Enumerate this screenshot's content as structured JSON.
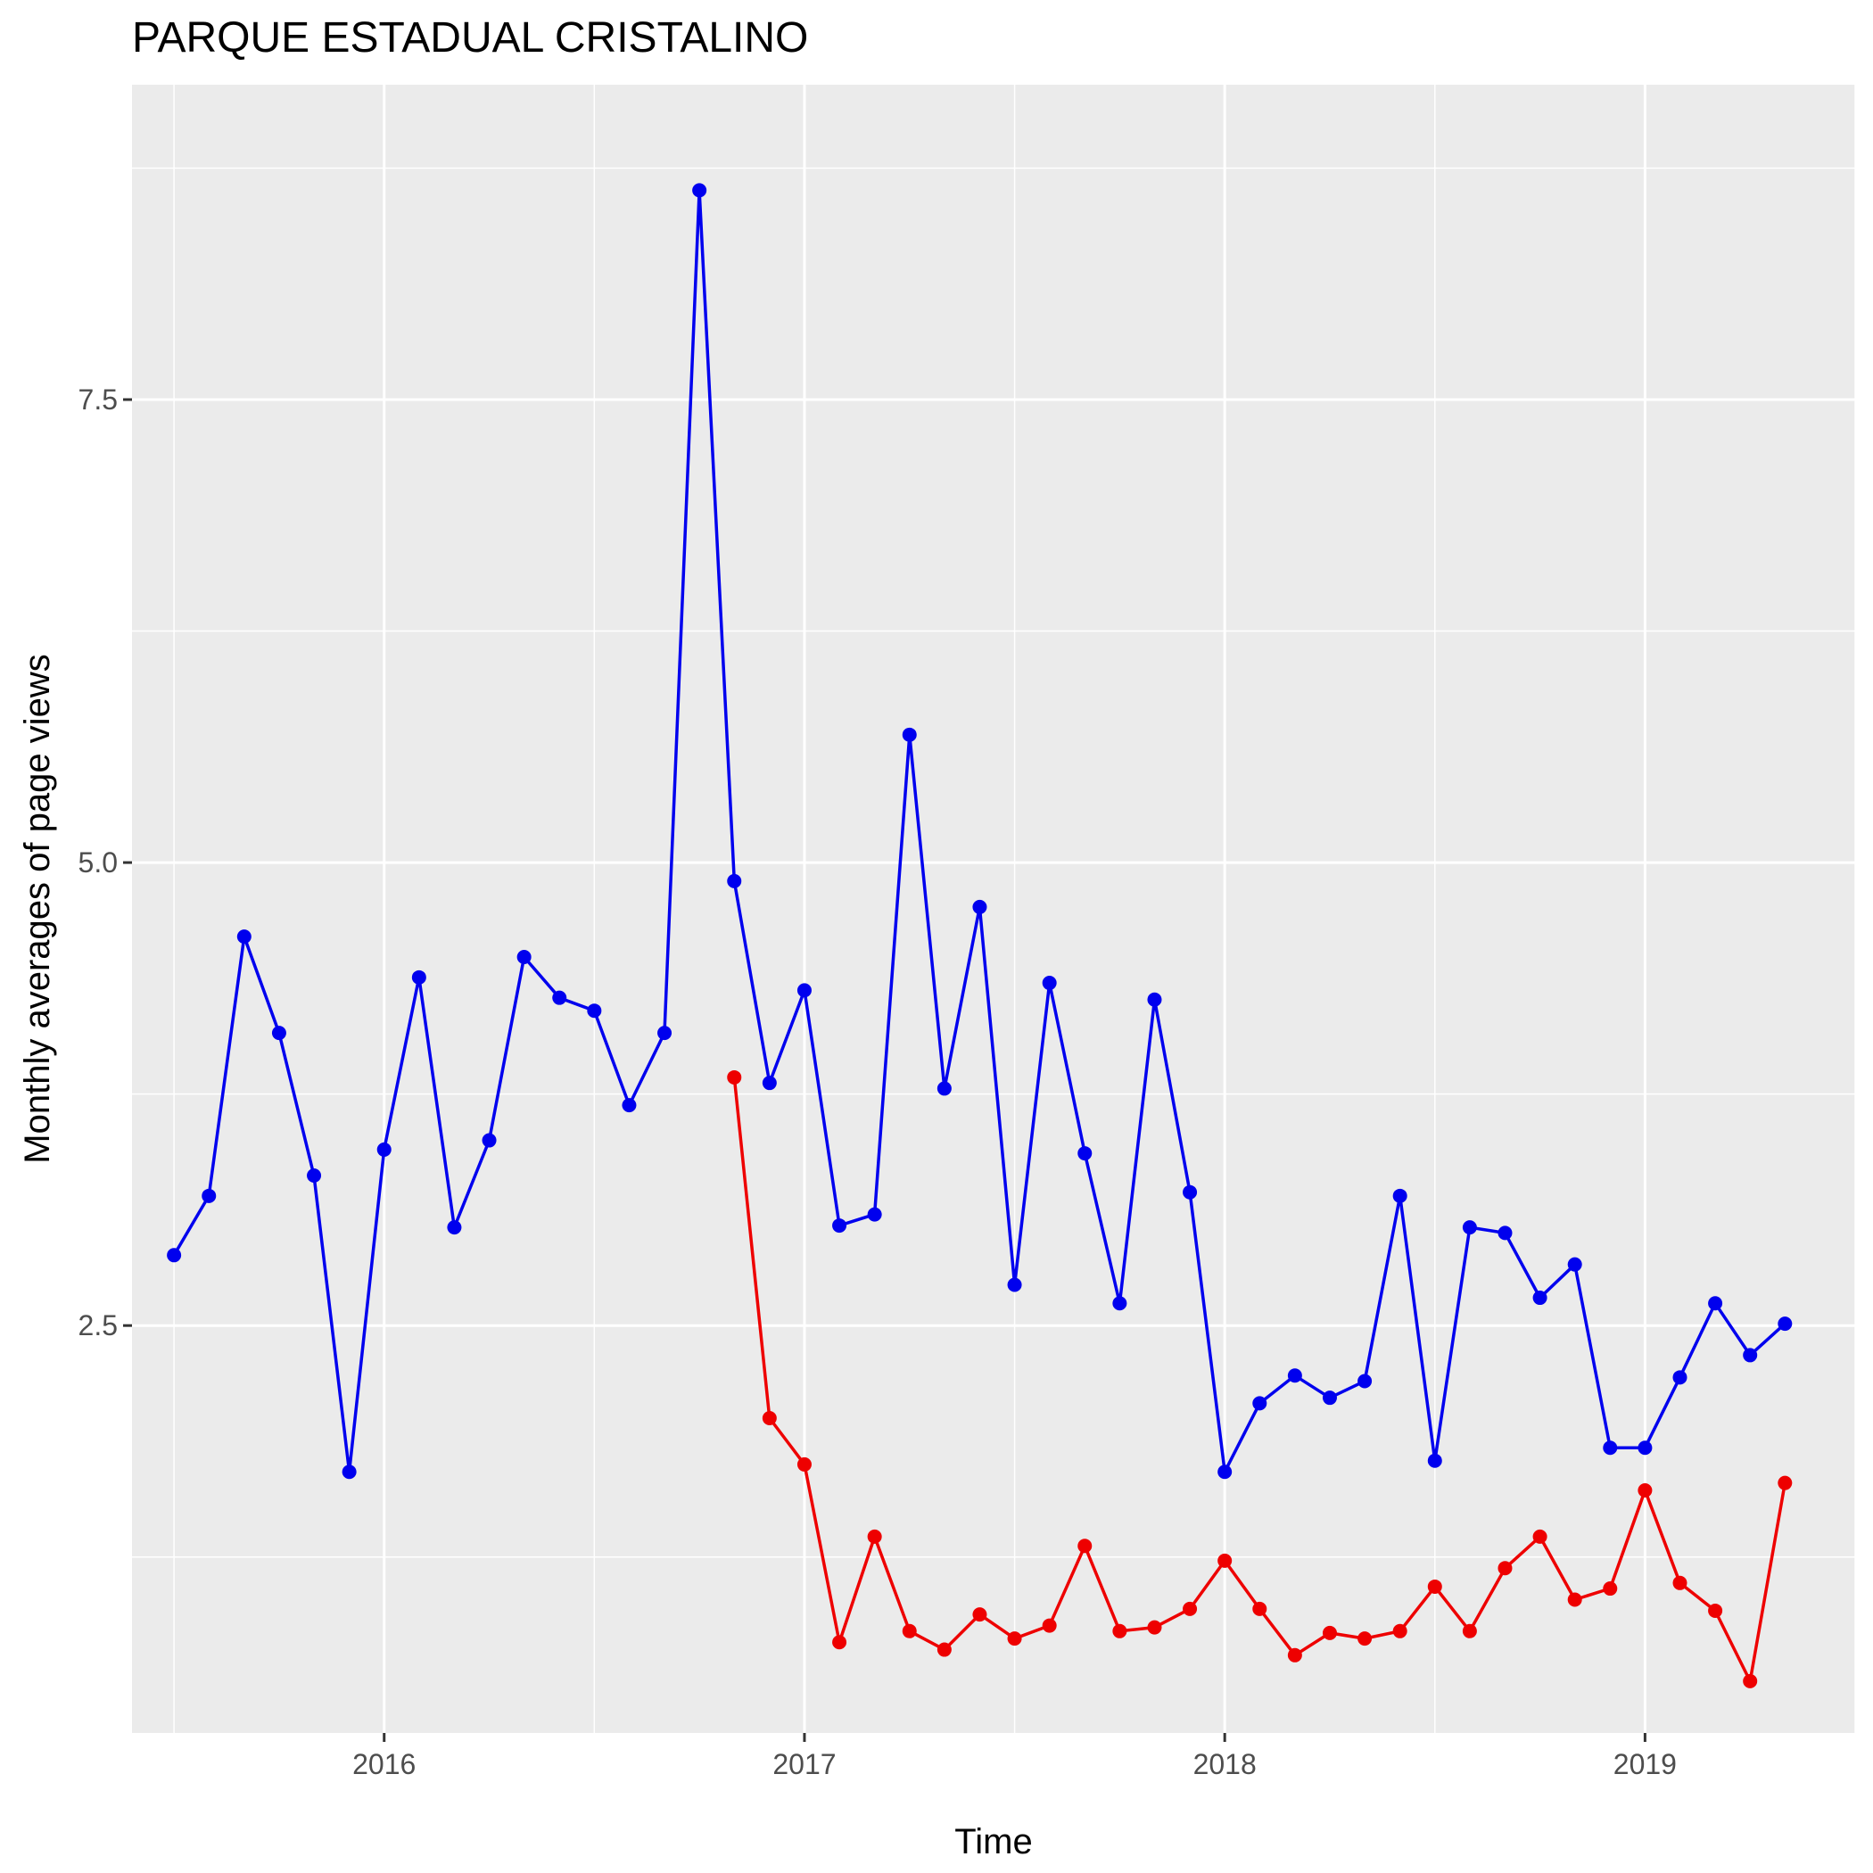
{
  "chart_data": {
    "type": "line",
    "title": "PARQUE ESTADUAL CRISTALINO",
    "xlabel": "Time",
    "ylabel": "Monthly averages of page views",
    "xlim": [
      2015.4,
      2019.5
    ],
    "ylim": [
      0.3,
      9.2
    ],
    "x_ticks": [
      {
        "value": 2016,
        "label": "2016"
      },
      {
        "value": 2017,
        "label": "2017"
      },
      {
        "value": 2018,
        "label": "2018"
      },
      {
        "value": 2019,
        "label": "2019"
      }
    ],
    "y_ticks": [
      {
        "value": 2.5,
        "label": "2.5"
      },
      {
        "value": 5.0,
        "label": "5.0"
      },
      {
        "value": 7.5,
        "label": "7.5"
      }
    ],
    "grid": true,
    "series": [
      {
        "color": "#0000ee",
        "x": [
          2015.5,
          2015.583,
          2015.667,
          2015.75,
          2015.833,
          2015.917,
          2016.0,
          2016.083,
          2016.167,
          2016.25,
          2016.333,
          2016.417,
          2016.5,
          2016.583,
          2016.667,
          2016.75,
          2016.833,
          2016.917,
          2017.0,
          2017.083,
          2017.167,
          2017.25,
          2017.333,
          2017.417,
          2017.5,
          2017.583,
          2017.667,
          2017.75,
          2017.833,
          2017.917,
          2018.0,
          2018.083,
          2018.167,
          2018.25,
          2018.333,
          2018.417,
          2018.5,
          2018.583,
          2018.667,
          2018.75,
          2018.833,
          2018.917,
          2019.0,
          2019.083,
          2019.167,
          2019.25,
          2019.333
        ],
        "values": [
          2.88,
          3.2,
          4.6,
          4.08,
          3.31,
          1.71,
          3.45,
          4.38,
          3.03,
          3.5,
          4.49,
          4.27,
          4.2,
          3.69,
          4.08,
          8.63,
          4.9,
          3.81,
          4.31,
          3.04,
          3.1,
          5.69,
          3.78,
          4.76,
          2.72,
          4.35,
          3.43,
          2.62,
          4.26,
          3.22,
          1.71,
          2.08,
          2.23,
          2.11,
          2.2,
          3.2,
          1.77,
          3.03,
          3.0,
          2.65,
          2.83,
          1.84,
          1.84,
          2.22,
          2.62,
          2.34,
          2.51
        ]
      },
      {
        "color": "#ee0000",
        "x": [
          2016.833,
          2016.917,
          2017.0,
          2017.083,
          2017.167,
          2017.25,
          2017.333,
          2017.417,
          2017.5,
          2017.583,
          2017.667,
          2017.75,
          2017.833,
          2017.917,
          2018.0,
          2018.083,
          2018.167,
          2018.25,
          2018.333,
          2018.417,
          2018.5,
          2018.583,
          2018.667,
          2018.75,
          2018.833,
          2018.917,
          2019.0,
          2019.083,
          2019.167,
          2019.25,
          2019.333
        ],
        "values": [
          3.84,
          2.0,
          1.75,
          0.79,
          1.36,
          0.85,
          0.75,
          0.94,
          0.81,
          0.88,
          1.31,
          0.85,
          0.87,
          0.97,
          1.23,
          0.97,
          0.72,
          0.84,
          0.81,
          0.85,
          1.09,
          0.85,
          1.19,
          1.36,
          1.02,
          1.08,
          1.61,
          1.11,
          0.96,
          0.58,
          1.65
        ]
      }
    ]
  }
}
